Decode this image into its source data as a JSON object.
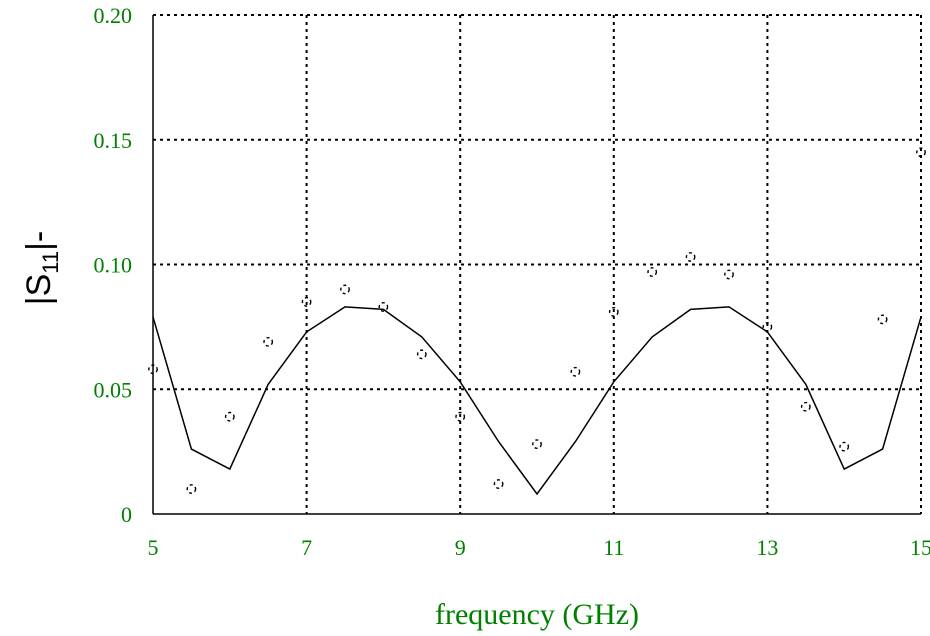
{
  "chart_data": {
    "type": "line",
    "xlabel": "frequency (GHz)",
    "ylabel": {
      "prefix": "|S",
      "subscript": "11",
      "suffix": "|-"
    },
    "xlim": [
      5,
      15
    ],
    "ylim": [
      0,
      0.2
    ],
    "xticks": [
      5,
      7,
      9,
      11,
      13,
      15
    ],
    "yticks": [
      0,
      0.05,
      0.1,
      0.15,
      0.2
    ],
    "xtick_labels": [
      "5",
      "7",
      "9",
      "11",
      "13",
      "15"
    ],
    "ytick_labels": [
      "0",
      "0.05",
      "0.10",
      "0.15",
      "0.20"
    ],
    "grid": true,
    "tick_color": "#008000",
    "series": [
      {
        "style": "line",
        "color": "#000000",
        "x": [
          5.0,
          5.5,
          6.0,
          6.5,
          7.0,
          7.5,
          8.0,
          8.5,
          9.0,
          9.5,
          10.0,
          10.5,
          11.0,
          11.5,
          12.0,
          12.5,
          13.0,
          13.5,
          14.0,
          14.5,
          15.0
        ],
        "y": [
          0.079,
          0.026,
          0.018,
          0.052,
          0.073,
          0.083,
          0.082,
          0.071,
          0.053,
          0.029,
          0.008,
          0.029,
          0.053,
          0.071,
          0.082,
          0.083,
          0.073,
          0.052,
          0.018,
          0.026,
          0.079
        ]
      },
      {
        "style": "dashed-circles",
        "color": "#000000",
        "x": [
          5.0,
          5.5,
          6.0,
          6.5,
          7.0,
          7.5,
          8.0,
          8.5,
          9.0,
          9.5,
          10.0,
          10.5,
          11.0,
          11.5,
          12.0,
          12.5,
          13.0,
          13.5,
          14.0,
          14.5,
          15.0
        ],
        "y": [
          0.058,
          0.01,
          0.039,
          0.069,
          0.085,
          0.09,
          0.083,
          0.064,
          0.039,
          0.012,
          0.028,
          0.057,
          0.081,
          0.097,
          0.103,
          0.096,
          0.075,
          0.043,
          0.027,
          0.078,
          0.145
        ]
      }
    ]
  }
}
